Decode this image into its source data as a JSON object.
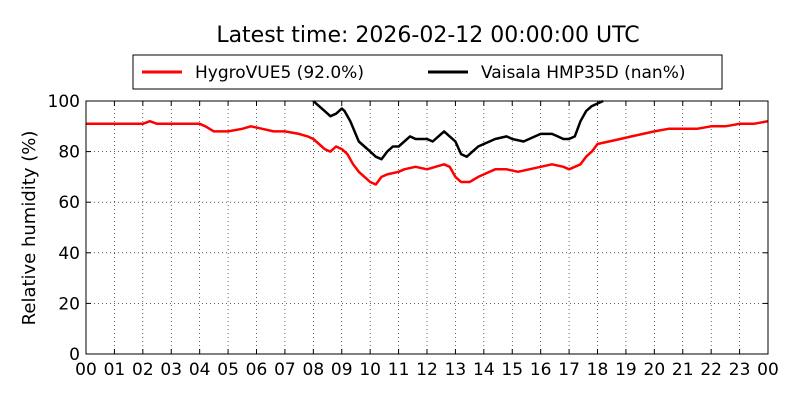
{
  "chart_data": {
    "type": "line",
    "title": "Latest time: 2026-02-12 00:00:00 UTC",
    "xlabel": "",
    "ylabel": "Relative humidity (%)",
    "xlim": [
      0,
      24
    ],
    "ylim": [
      0,
      100
    ],
    "grid": true,
    "legend_position": "top",
    "x_tick_labels": [
      "00",
      "01",
      "02",
      "03",
      "04",
      "05",
      "06",
      "07",
      "08",
      "09",
      "10",
      "11",
      "12",
      "13",
      "14",
      "15",
      "16",
      "17",
      "18",
      "19",
      "20",
      "21",
      "22",
      "23",
      "00"
    ],
    "y_tick_labels": [
      "0",
      "20",
      "40",
      "60",
      "80",
      "100"
    ],
    "series": [
      {
        "name": "HygroVUE5 (92.0%)",
        "color": "#ff0000",
        "x": [
          0,
          2.0,
          2.25,
          2.5,
          4.0,
          4.2,
          4.5,
          5.0,
          5.5,
          5.8,
          6.2,
          6.6,
          7.0,
          7.5,
          7.8,
          8.0,
          8.2,
          8.4,
          8.6,
          8.8,
          9.0,
          9.2,
          9.4,
          9.6,
          9.8,
          10.0,
          10.2,
          10.4,
          10.6,
          11.0,
          11.2,
          11.6,
          12.0,
          12.3,
          12.6,
          12.8,
          13.0,
          13.2,
          13.5,
          13.8,
          14.0,
          14.4,
          14.8,
          15.2,
          15.6,
          16.0,
          16.4,
          16.8,
          17.0,
          17.2,
          17.4,
          17.6,
          17.8,
          18.0,
          18.4,
          18.8,
          19.2,
          19.6,
          20.0,
          20.5,
          21.0,
          21.5,
          22.0,
          22.5,
          23.0,
          23.5,
          24.0
        ],
        "values": [
          91,
          91,
          92,
          91,
          91,
          90,
          88,
          88,
          89,
          90,
          89,
          88,
          88,
          87,
          86,
          85,
          83,
          81,
          80,
          82,
          81,
          79,
          75,
          72,
          70,
          68,
          67,
          70,
          71,
          72,
          73,
          74,
          73,
          74,
          75,
          74,
          70,
          68,
          68,
          70,
          71,
          73,
          73,
          72,
          73,
          74,
          75,
          74,
          73,
          74,
          75,
          78,
          80,
          83,
          84,
          85,
          86,
          87,
          88,
          89,
          89,
          89,
          90,
          90,
          91,
          91,
          92
        ]
      },
      {
        "name": "Vaisala HMP35D (nan%)",
        "color": "#000000",
        "x": [
          8.0,
          8.2,
          8.4,
          8.6,
          8.8,
          9.0,
          9.1,
          9.3,
          9.6,
          9.8,
          10.0,
          10.2,
          10.4,
          10.6,
          10.8,
          11.0,
          11.2,
          11.4,
          11.6,
          11.8,
          12.0,
          12.2,
          12.4,
          12.6,
          12.8,
          13.0,
          13.2,
          13.4,
          13.6,
          13.8,
          14.0,
          14.4,
          14.8,
          15.0,
          15.4,
          15.8,
          16.0,
          16.4,
          16.6,
          16.8,
          17.0,
          17.2,
          17.4,
          17.6,
          17.8,
          18.0,
          18.2
        ],
        "values": [
          100,
          98,
          96,
          94,
          95,
          97,
          96,
          92,
          84,
          82,
          80,
          78,
          77,
          80,
          82,
          82,
          84,
          86,
          85,
          85,
          85,
          84,
          86,
          88,
          86,
          84,
          79,
          78,
          80,
          82,
          83,
          85,
          86,
          85,
          84,
          86,
          87,
          87,
          86,
          85,
          85,
          86,
          92,
          96,
          98,
          99,
          100
        ]
      }
    ]
  }
}
